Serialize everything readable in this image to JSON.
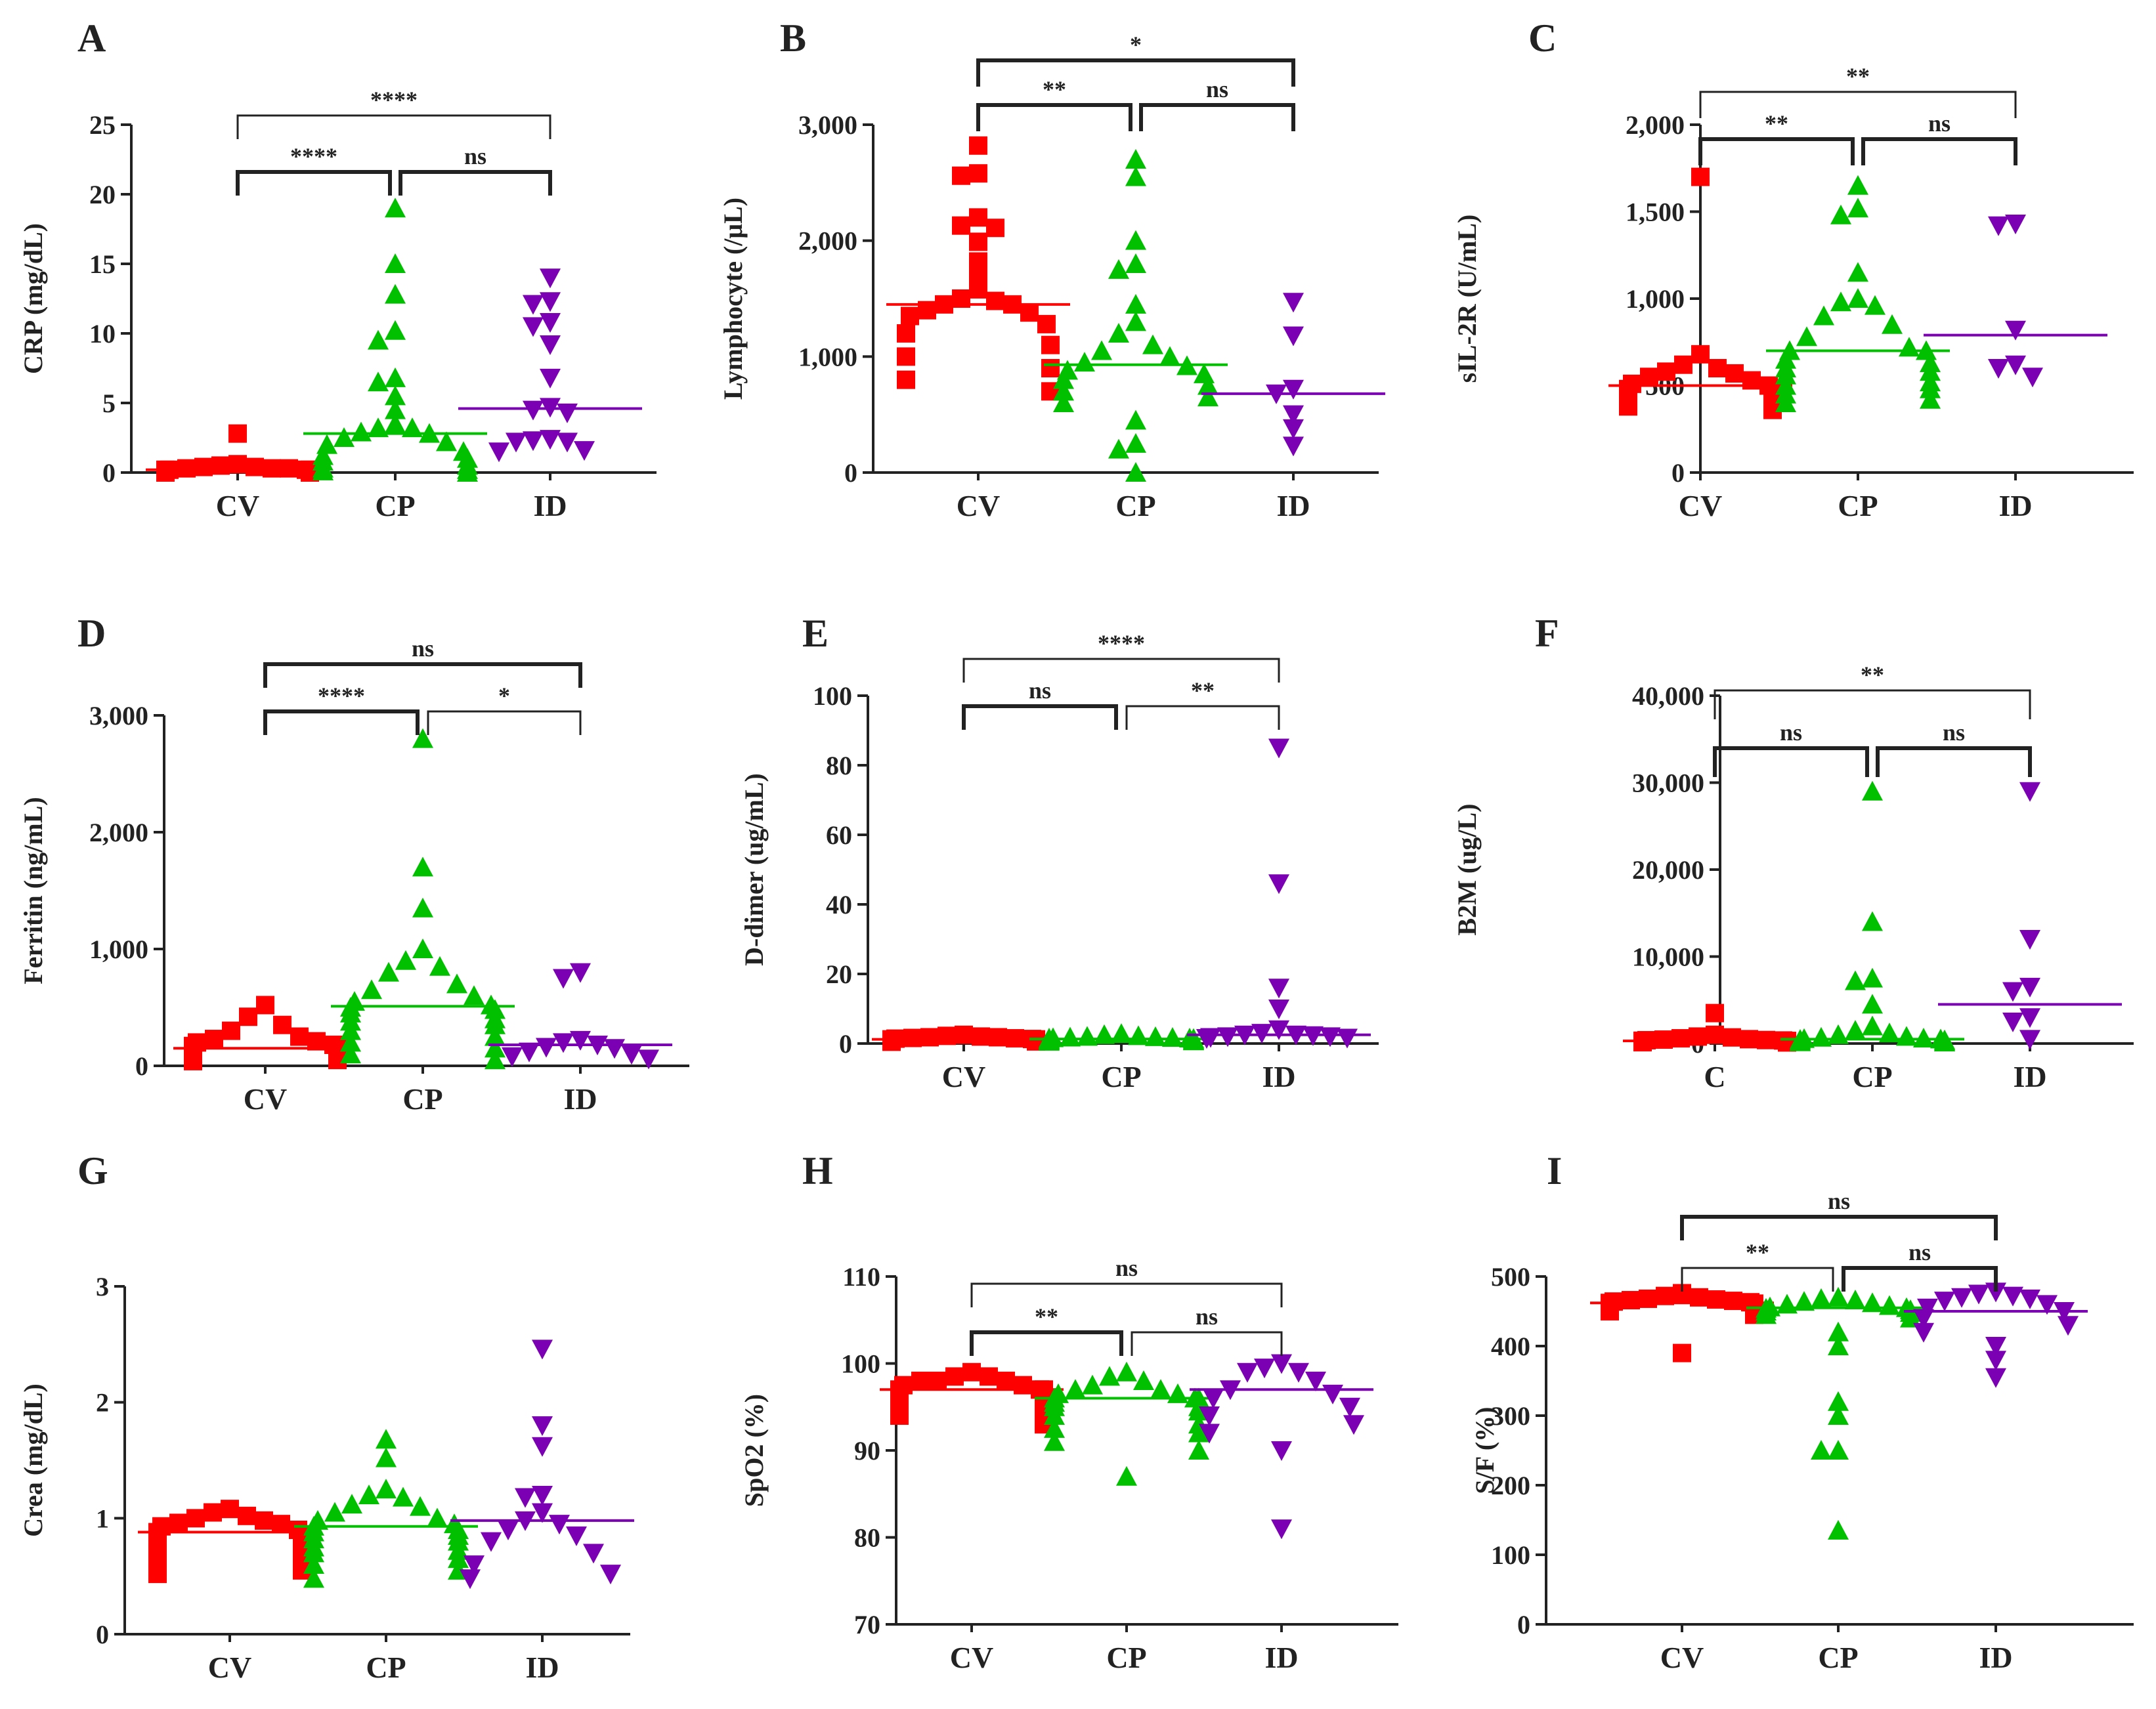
{
  "colors": {
    "CV": "#ff0000",
    "CP": "#00c000",
    "ID": "#7b00b4"
  },
  "chart_data": [
    {
      "panel": "A",
      "type": "scatter",
      "ylabel": "CRP (mg/dL)",
      "ylim": [
        0,
        25
      ],
      "yticks": [
        0,
        5,
        10,
        15,
        20,
        25
      ],
      "ytick_labels": [
        "0",
        "5",
        "10",
        "15",
        "20",
        "25"
      ],
      "categories": [
        "CV",
        "CP",
        "ID"
      ],
      "series": [
        {
          "name": "CV",
          "marker": "square",
          "median": 0.2,
          "values": [
            2.8,
            0.6,
            0.5,
            0.4,
            0.4,
            0.3,
            0.3,
            0.3,
            0.2,
            0.2,
            0.2,
            0.2,
            0.1,
            0.1,
            0.1,
            0.1,
            0.1,
            0,
            0,
            0,
            0
          ]
        },
        {
          "name": "CP",
          "marker": "triangle-up",
          "median": 2.8,
          "values": [
            19,
            15,
            12.8,
            10.2,
            9.5,
            6.8,
            6.5,
            5.5,
            4.5,
            3.5,
            3.2,
            3.2,
            2.9,
            2.8,
            2.5,
            2.2,
            2,
            1.5,
            1.2,
            1,
            0.8,
            0.5,
            0.3,
            0.2,
            0.1,
            0
          ]
        },
        {
          "name": "ID",
          "marker": "triangle-down",
          "median": 4.6,
          "values": [
            14,
            12.3,
            12.1,
            10.8,
            10.5,
            9.2,
            6.8,
            4.7,
            4.5,
            4.3,
            2.4,
            2.3,
            2.2,
            2.2,
            1.6,
            1.5
          ]
        }
      ],
      "brackets": [
        {
          "from": 0,
          "to": 2,
          "label": "****",
          "bold": false
        },
        {
          "from": 0,
          "to": 1,
          "label": "****",
          "bold": true
        },
        {
          "from": 1,
          "to": 2,
          "label": "ns",
          "bold": true
        }
      ]
    },
    {
      "panel": "B",
      "type": "scatter",
      "ylabel": "Lymphocyte (/μL)",
      "ylim": [
        0,
        3000
      ],
      "yticks": [
        0,
        1000,
        2000,
        3000
      ],
      "ytick_labels": [
        "0",
        "1,000",
        "2,000",
        "3,000"
      ],
      "categories": [
        "CV",
        "CP",
        "ID"
      ],
      "series": [
        {
          "name": "CV",
          "marker": "square",
          "median": 1450,
          "values": [
            2820,
            2580,
            2560,
            2200,
            2130,
            2110,
            1990,
            1820,
            1700,
            1580,
            1500,
            1480,
            1450,
            1450,
            1400,
            1380,
            1350,
            1280,
            1200,
            1100,
            1000,
            900,
            800,
            700
          ]
        },
        {
          "name": "CP",
          "marker": "triangle-up",
          "median": 930,
          "values": [
            2700,
            2550,
            2000,
            1800,
            1750,
            1450,
            1300,
            1200,
            1100,
            1050,
            1000,
            950,
            920,
            880,
            850,
            800,
            750,
            700,
            650,
            600,
            450,
            250,
            200,
            0
          ]
        },
        {
          "name": "ID",
          "marker": "triangle-down",
          "median": 680,
          "values": [
            1470,
            1180,
            720,
            680,
            500,
            380,
            230
          ]
        }
      ],
      "brackets": [
        {
          "from": 0,
          "to": 2,
          "label": "*",
          "bold": true
        },
        {
          "from": 0,
          "to": 1,
          "label": "**",
          "bold": true
        },
        {
          "from": 1,
          "to": 2,
          "label": "ns",
          "bold": true
        }
      ]
    },
    {
      "panel": "C",
      "type": "scatter",
      "ylabel": "sIL-2R (U/mL)",
      "ylim": [
        0,
        2000
      ],
      "yticks": [
        0,
        500,
        1000,
        1500,
        2000
      ],
      "ytick_labels": [
        "0",
        "500",
        "1,000",
        "1,500",
        "2,000"
      ],
      "categories": [
        "CV",
        "CP",
        "ID"
      ],
      "series": [
        {
          "name": "CV",
          "marker": "square",
          "median": 500,
          "values": [
            1700,
            680,
            620,
            600,
            580,
            570,
            550,
            530,
            510,
            500,
            480,
            470,
            460,
            450,
            440,
            430,
            410,
            400,
            380,
            360
          ]
        },
        {
          "name": "CP",
          "marker": "triangle-up",
          "median": 700,
          "values": [
            1650,
            1520,
            1480,
            1150,
            1000,
            980,
            960,
            900,
            850,
            780,
            720,
            700,
            700,
            650,
            630,
            600,
            580,
            560,
            520,
            500,
            480,
            450,
            420,
            400
          ]
        },
        {
          "name": "ID",
          "marker": "triangle-down",
          "median": 790,
          "values": [
            1430,
            1420,
            820,
            620,
            600,
            550
          ]
        }
      ],
      "brackets": [
        {
          "from": 0,
          "to": 2,
          "label": "**",
          "bold": false
        },
        {
          "from": 0,
          "to": 1,
          "label": "**",
          "bold": true
        },
        {
          "from": 1,
          "to": 2,
          "label": "ns",
          "bold": true
        }
      ]
    },
    {
      "panel": "D",
      "type": "scatter",
      "ylabel": "Ferritin (ng/mL)",
      "ylim": [
        0,
        3000
      ],
      "yticks": [
        0,
        1000,
        2000,
        3000
      ],
      "ytick_labels": [
        "0",
        "1,000",
        "2,000",
        "3,000"
      ],
      "categories": [
        "CV",
        "CP",
        "ID"
      ],
      "series": [
        {
          "name": "CV",
          "marker": "square",
          "median": 150,
          "values": [
            520,
            420,
            350,
            300,
            250,
            230,
            210,
            200,
            180,
            170,
            150,
            140,
            130,
            110,
            100,
            80,
            70,
            60,
            50,
            40
          ]
        },
        {
          "name": "CP",
          "marker": "triangle-up",
          "median": 510,
          "values": [
            2800,
            1700,
            1350,
            1000,
            900,
            850,
            800,
            700,
            650,
            600,
            550,
            520,
            500,
            480,
            450,
            400,
            380,
            350,
            300,
            250,
            200,
            150,
            100,
            50
          ]
        },
        {
          "name": "ID",
          "marker": "triangle-down",
          "median": 180,
          "values": [
            800,
            750,
            220,
            200,
            180,
            160,
            150,
            120,
            100,
            80,
            60
          ]
        }
      ],
      "brackets": [
        {
          "from": 0,
          "to": 2,
          "label": "ns",
          "bold": true
        },
        {
          "from": 0,
          "to": 1,
          "label": "****",
          "bold": true
        },
        {
          "from": 1,
          "to": 2,
          "label": "*",
          "bold": false
        }
      ]
    },
    {
      "panel": "E",
      "type": "scatter",
      "ylabel": "D-dimer (ug/mL)",
      "ylim": [
        0,
        100
      ],
      "yticks": [
        0,
        20,
        40,
        60,
        80,
        100
      ],
      "ytick_labels": [
        "0",
        "20",
        "40",
        "60",
        "80",
        "100"
      ],
      "categories": [
        "CV",
        "CP",
        "ID"
      ],
      "series": [
        {
          "name": "CV",
          "marker": "square",
          "median": 1.2,
          "values": [
            2.5,
            2.2,
            2,
            1.8,
            1.8,
            1.6,
            1.5,
            1.4,
            1.3,
            1.2,
            1.2,
            1.1,
            1,
            1,
            0.9,
            0.9,
            0.8,
            0.8,
            0.7,
            0.7,
            0.6,
            0.5
          ]
        },
        {
          "name": "CP",
          "marker": "triangle-up",
          "median": 1.3,
          "values": [
            2.8,
            2.5,
            2.2,
            2,
            1.9,
            1.8,
            1.7,
            1.6,
            1.5,
            1.5,
            1.4,
            1.3,
            1.3,
            1.2,
            1.2,
            1.1,
            1,
            1,
            0.9,
            0.9,
            0.8,
            0.8,
            0.7,
            0.6
          ]
        },
        {
          "name": "ID",
          "marker": "triangle-down",
          "median": 2.5,
          "values": [
            85,
            46,
            16,
            10,
            4,
            3,
            2.5,
            2.5,
            2.3,
            2,
            2,
            1.8,
            1.6,
            1.5
          ]
        }
      ],
      "brackets": [
        {
          "from": 0,
          "to": 2,
          "label": "****",
          "bold": false
        },
        {
          "from": 0,
          "to": 1,
          "label": "ns",
          "bold": true
        },
        {
          "from": 1,
          "to": 2,
          "label": "**",
          "bold": false
        }
      ]
    },
    {
      "panel": "F",
      "type": "scatter",
      "ylabel": "B2M (ug/L)",
      "ylim": [
        0,
        40000
      ],
      "yticks": [
        0,
        10000,
        20000,
        30000,
        40000
      ],
      "ytick_labels": [
        "0",
        "10,000",
        "20,000",
        "30,000",
        "40,000"
      ],
      "categories": [
        "C",
        "CP",
        "ID"
      ],
      "series": [
        {
          "name": "CV",
          "marker": "square",
          "median": 300,
          "values": [
            3500,
            1000,
            800,
            700,
            600,
            500,
            450,
            400,
            380,
            350,
            320,
            300,
            280,
            250,
            220,
            200,
            180,
            160,
            150,
            120
          ]
        },
        {
          "name": "CP",
          "marker": "triangle-up",
          "median": 500,
          "values": [
            29000,
            14000,
            7500,
            7200,
            4500,
            2000,
            1500,
            1200,
            1000,
            800,
            700,
            600,
            550,
            500,
            450,
            400,
            350,
            300,
            250,
            200,
            180,
            150
          ]
        },
        {
          "name": "ID",
          "marker": "triangle-down",
          "median": 4500,
          "values": [
            29000,
            12000,
            6500,
            6000,
            3000,
            2500,
            500
          ]
        }
      ],
      "brackets": [
        {
          "from": 0,
          "to": 2,
          "label": "**",
          "bold": false
        },
        {
          "from": 0,
          "to": 1,
          "label": "ns",
          "bold": true
        },
        {
          "from": 1,
          "to": 2,
          "label": "ns",
          "bold": true
        }
      ]
    },
    {
      "panel": "G",
      "type": "scatter",
      "ylabel": "Crea (mg/dL)",
      "ylim": [
        0,
        3
      ],
      "yticks": [
        0,
        1,
        2,
        3
      ],
      "ytick_labels": [
        "0",
        "1",
        "2",
        "3"
      ],
      "categories": [
        "CV",
        "CP",
        "ID"
      ],
      "series": [
        {
          "name": "CV",
          "marker": "square",
          "median": 0.88,
          "values": [
            1.08,
            1.05,
            1.02,
            1,
            0.98,
            0.96,
            0.95,
            0.93,
            0.9,
            0.88,
            0.86,
            0.85,
            0.82,
            0.8,
            0.78,
            0.75,
            0.72,
            0.7,
            0.68,
            0.65,
            0.62,
            0.6,
            0.55,
            0.52
          ]
        },
        {
          "name": "CP",
          "marker": "triangle-up",
          "median": 0.93,
          "values": [
            1.68,
            1.52,
            1.25,
            1.2,
            1.18,
            1.12,
            1.1,
            1.05,
            1,
            0.98,
            0.95,
            0.93,
            0.9,
            0.88,
            0.85,
            0.82,
            0.8,
            0.75,
            0.72,
            0.7,
            0.65,
            0.6,
            0.55,
            0.48
          ]
        },
        {
          "name": "ID",
          "marker": "triangle-down",
          "median": 0.98,
          "values": [
            2.46,
            1.8,
            1.62,
            1.2,
            1.18,
            1.05,
            0.98,
            0.95,
            0.9,
            0.85,
            0.8,
            0.7,
            0.6,
            0.52,
            0.48
          ]
        }
      ],
      "brackets": []
    },
    {
      "panel": "H",
      "type": "scatter",
      "ylabel": "SpO2 (%)",
      "ylim": [
        70,
        110
      ],
      "yticks": [
        70,
        80,
        90,
        100,
        110
      ],
      "ytick_labels": [
        "70",
        "80",
        "90",
        "100",
        "110"
      ],
      "categories": [
        "CV",
        "CP",
        "ID"
      ],
      "series": [
        {
          "name": "CV",
          "marker": "square",
          "median": 97,
          "values": [
            99,
            98.5,
            98.5,
            98,
            98,
            98,
            97.5,
            97.5,
            97,
            97,
            97,
            96.5,
            96.5,
            96,
            96,
            95.5,
            95,
            94,
            93
          ]
        },
        {
          "name": "CP",
          "marker": "triangle-up",
          "median": 96,
          "values": [
            99,
            98.5,
            98,
            97.5,
            97,
            97,
            96.5,
            96.5,
            96,
            96,
            96,
            95.5,
            95,
            95,
            94.5,
            94,
            93,
            92.5,
            92,
            91,
            90,
            87
          ]
        },
        {
          "name": "ID",
          "marker": "triangle-down",
          "median": 97,
          "values": [
            100,
            99.5,
            99,
            99,
            98,
            97,
            96.5,
            96,
            95,
            94,
            93,
            92,
            90,
            81
          ]
        }
      ],
      "brackets": [
        {
          "from": 0,
          "to": 2,
          "label": "ns",
          "bold": false
        },
        {
          "from": 0,
          "to": 1,
          "label": "**",
          "bold": true
        },
        {
          "from": 1,
          "to": 2,
          "label": "ns",
          "bold": false
        }
      ]
    },
    {
      "panel": "I",
      "type": "scatter",
      "ylabel": "S/F (%)",
      "ylim": [
        0,
        500
      ],
      "yticks": [
        0,
        100,
        200,
        300,
        400,
        500
      ],
      "ytick_labels": [
        "0",
        "100",
        "200",
        "300",
        "400",
        "500"
      ],
      "categories": [
        "CV",
        "CP",
        "ID"
      ],
      "series": [
        {
          "name": "CV",
          "marker": "square",
          "median": 462,
          "values": [
            476,
            472,
            470,
            468,
            467,
            466,
            465,
            464,
            463,
            462,
            461,
            460,
            459,
            458,
            457,
            456,
            455,
            450,
            445,
            390
          ]
        },
        {
          "name": "CP",
          "marker": "triangle-up",
          "median": 455,
          "values": [
            470,
            468,
            466,
            464,
            462,
            460,
            458,
            456,
            455,
            454,
            452,
            450,
            448,
            445,
            440,
            420,
            400,
            320,
            300,
            250,
            250,
            135
          ]
        },
        {
          "name": "ID",
          "marker": "triangle-down",
          "median": 450,
          "values": [
            478,
            475,
            472,
            470,
            468,
            465,
            460,
            455,
            450,
            440,
            430,
            420,
            400,
            380,
            355
          ]
        }
      ],
      "brackets": [
        {
          "from": 0,
          "to": 2,
          "label": "ns",
          "bold": true
        },
        {
          "from": 0,
          "to": 1,
          "label": "**",
          "bold": false
        },
        {
          "from": 1,
          "to": 2,
          "label": "ns",
          "bold": true
        }
      ]
    }
  ]
}
